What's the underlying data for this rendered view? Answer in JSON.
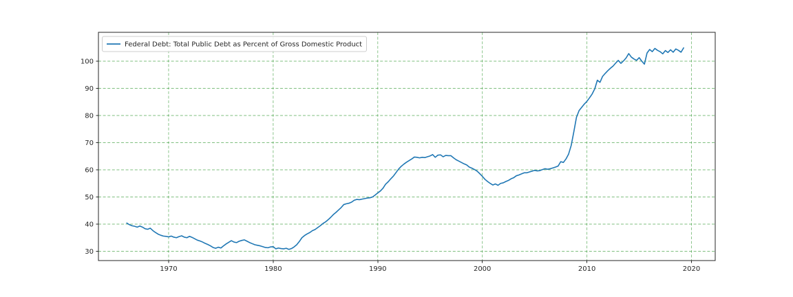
{
  "figure": {
    "background": "#ffffff",
    "plot_background": "#ffffff",
    "spine_color": "#262626"
  },
  "chart_data": {
    "type": "line",
    "title": "",
    "xlabel": "",
    "ylabel": "",
    "legend": "Federal Debt: Total Public Debt as Percent of Gross Domestic Product",
    "legend_position": "upper left",
    "grid": "on",
    "grid_style": "dashed",
    "grid_color_rgba": "rgba(0,128,0,0.5)",
    "line_color": "#1f77b4",
    "x_unit": "year (quarterly observations)",
    "y_unit": "percent of GDP",
    "xlim": [
      1963.29,
      2022.27
    ],
    "ylim": [
      26.58,
      110.63
    ],
    "xticks": [
      1970,
      1980,
      1990,
      2000,
      2010,
      2020
    ],
    "yticks": [
      30,
      40,
      50,
      60,
      70,
      80,
      90,
      100
    ],
    "x_start": 1966.0,
    "x_step": 0.25,
    "values": [
      40.4,
      39.8,
      39.4,
      39.2,
      38.9,
      39.3,
      38.9,
      38.3,
      38.1,
      38.5,
      37.6,
      36.9,
      36.3,
      35.9,
      35.6,
      35.5,
      35.3,
      35.6,
      35.2,
      35.0,
      35.4,
      35.7,
      35.2,
      35.0,
      35.5,
      35.1,
      34.6,
      34.1,
      33.8,
      33.4,
      32.9,
      32.5,
      32.0,
      31.4,
      31.1,
      31.5,
      31.2,
      32.0,
      32.7,
      33.3,
      33.9,
      33.4,
      33.2,
      33.7,
      34.0,
      34.2,
      33.7,
      33.2,
      32.8,
      32.4,
      32.2,
      32.0,
      31.7,
      31.4,
      31.3,
      31.6,
      31.7,
      30.9,
      31.2,
      31.0,
      30.9,
      31.1,
      30.7,
      31.0,
      31.6,
      32.4,
      33.6,
      35.0,
      35.8,
      36.4,
      36.9,
      37.6,
      38.0,
      38.7,
      39.4,
      40.2,
      40.8,
      41.6,
      42.5,
      43.5,
      44.3,
      45.2,
      46.1,
      47.2,
      47.5,
      47.7,
      48.1,
      48.8,
      49.1,
      49.0,
      49.2,
      49.4,
      49.6,
      49.7,
      50.0,
      50.7,
      51.5,
      52.2,
      53.2,
      54.7,
      55.6,
      56.7,
      57.7,
      59.0,
      60.3,
      61.3,
      62.1,
      62.8,
      63.4,
      64.0,
      64.7,
      64.6,
      64.4,
      64.6,
      64.5,
      64.8,
      65.1,
      65.6,
      64.6,
      65.4,
      65.5,
      64.8,
      65.3,
      65.2,
      65.2,
      64.4,
      63.7,
      63.2,
      62.7,
      62.2,
      61.8,
      61.0,
      60.6,
      60.1,
      59.5,
      58.6,
      57.6,
      56.5,
      55.7,
      55.0,
      54.4,
      54.8,
      54.3,
      55.0,
      55.2,
      55.7,
      56.1,
      56.7,
      57.1,
      57.8,
      58.1,
      58.5,
      58.9,
      58.9,
      59.2,
      59.5,
      59.8,
      59.6,
      59.7,
      60.1,
      60.4,
      60.2,
      60.4,
      60.7,
      61.0,
      61.4,
      63.0,
      62.7,
      64.0,
      65.8,
      69.0,
      74.0,
      79.3,
      81.8,
      83.0,
      84.2,
      85.2,
      86.5,
      87.9,
      89.8,
      93.0,
      92.2,
      94.4,
      95.5,
      96.5,
      97.4,
      98.2,
      99.3,
      100.3,
      99.2,
      100.1,
      101.2,
      102.8,
      101.5,
      100.8,
      100.3,
      101.3,
      100.0,
      98.9,
      103.0,
      104.3,
      103.5,
      104.7,
      104.0,
      103.5,
      102.7,
      103.9,
      103.2,
      104.2,
      103.3,
      104.5,
      104.0,
      103.3,
      104.9
    ]
  }
}
